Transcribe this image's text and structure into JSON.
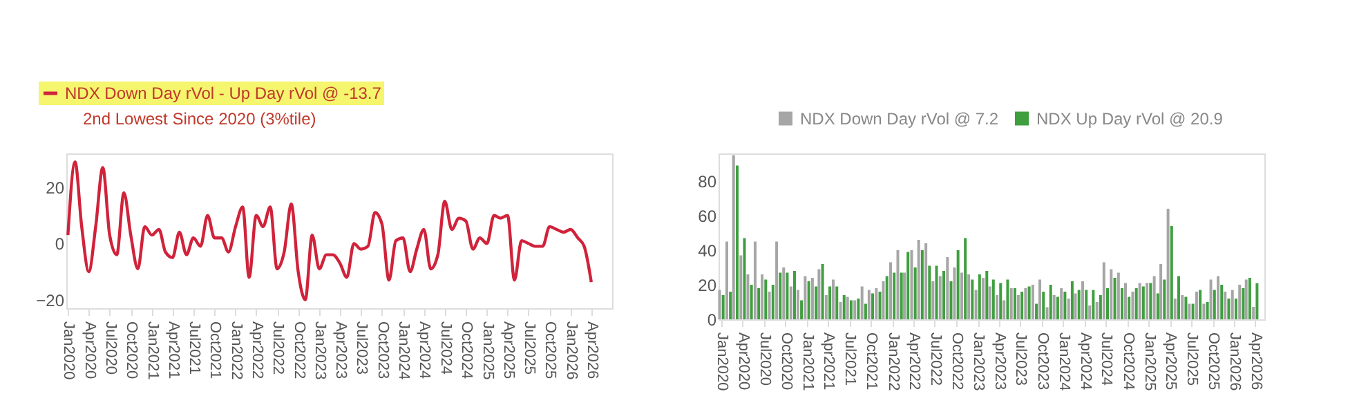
{
  "chart_data": [
    {
      "type": "line",
      "legend": "top left",
      "grid": false,
      "marker": "none",
      "line_style": "solid",
      "annotations": [
        "2nd Lowest Since 2020 (3%tile)"
      ],
      "x": [
        "2020-01",
        "2020-02",
        "2020-03",
        "2020-04",
        "2020-05",
        "2020-06",
        "2020-07",
        "2020-08",
        "2020-09",
        "2020-10",
        "2020-11",
        "2020-12",
        "2021-01",
        "2021-02",
        "2021-03",
        "2021-04",
        "2021-05",
        "2021-06",
        "2021-07",
        "2021-08",
        "2021-09",
        "2021-10",
        "2021-11",
        "2021-12",
        "2022-01",
        "2022-02",
        "2022-03",
        "2022-04",
        "2022-05",
        "2022-06",
        "2022-07",
        "2022-08",
        "2022-09",
        "2022-10",
        "2022-11",
        "2022-12",
        "2023-01",
        "2023-02",
        "2023-03",
        "2023-04",
        "2023-05",
        "2023-06",
        "2023-07",
        "2023-08",
        "2023-09",
        "2023-10",
        "2023-11",
        "2023-12",
        "2024-01",
        "2024-02",
        "2024-03",
        "2024-04",
        "2024-05",
        "2024-06",
        "2024-07",
        "2024-08",
        "2024-09",
        "2024-10",
        "2024-11",
        "2024-12",
        "2025-01",
        "2025-02",
        "2025-03",
        "2025-04",
        "2025-05",
        "2025-06",
        "2025-07",
        "2025-08",
        "2025-09",
        "2025-10",
        "2025-11",
        "2025-12",
        "2026-01",
        "2026-02",
        "2026-03",
        "2026-04"
      ],
      "series": [
        {
          "name": "NDX Down Day rVol - Up Day rVol @ -13.7",
          "color": "#d0233b",
          "values": [
            3,
            29,
            6,
            -10,
            6,
            27,
            3,
            -4,
            18,
            3,
            -9,
            6,
            3,
            5,
            -3,
            -5,
            4,
            -4,
            2,
            -1,
            10,
            2,
            2,
            -3,
            6,
            13,
            -12,
            10,
            6,
            13,
            -9,
            -3,
            14,
            -10,
            -20,
            3,
            -9,
            -4,
            -4,
            -7,
            -12,
            0,
            -2,
            -1,
            11,
            7,
            -13,
            1,
            2,
            -10,
            -2,
            5,
            -9,
            -4,
            15,
            5,
            9,
            8,
            -2,
            2,
            0,
            10,
            9,
            10,
            -13,
            1,
            0,
            -1,
            -1,
            6,
            5,
            4,
            5,
            2,
            -1,
            -13.7
          ]
        }
      ],
      "xlim": [
        "2019-12-25",
        "2026-07-01"
      ],
      "xticks": [
        {
          "value": "2020-01",
          "label": "Jan2020"
        },
        {
          "value": "2020-04",
          "label": "Apr2020"
        },
        {
          "value": "2020-07",
          "label": "Jul2020"
        },
        {
          "value": "2020-10",
          "label": "Oct2020"
        },
        {
          "value": "2021-01",
          "label": "Jan2021"
        },
        {
          "value": "2021-04",
          "label": "Apr2021"
        },
        {
          "value": "2021-07",
          "label": "Jul2021"
        },
        {
          "value": "2021-10",
          "label": "Oct2021"
        },
        {
          "value": "2022-01",
          "label": "Jan2022"
        },
        {
          "value": "2022-04",
          "label": "Apr2022"
        },
        {
          "value": "2022-07",
          "label": "Jul2022"
        },
        {
          "value": "2022-10",
          "label": "Oct2022"
        },
        {
          "value": "2023-01",
          "label": "Jan2023"
        },
        {
          "value": "2023-04",
          "label": "Apr2023"
        },
        {
          "value": "2023-07",
          "label": "Jul2023"
        },
        {
          "value": "2023-10",
          "label": "Oct2023"
        },
        {
          "value": "2024-01",
          "label": "Jan2024"
        },
        {
          "value": "2024-04",
          "label": "Apr2024"
        },
        {
          "value": "2024-07",
          "label": "Jul2024"
        },
        {
          "value": "2024-10",
          "label": "Oct2024"
        },
        {
          "value": "2025-01",
          "label": "Jan2025"
        },
        {
          "value": "2025-04",
          "label": "Apr2025"
        },
        {
          "value": "2025-07",
          "label": "Jul2025"
        },
        {
          "value": "2025-10",
          "label": "Oct2025"
        },
        {
          "value": "2026-01",
          "label": "Jan2026"
        },
        {
          "value": "2026-04",
          "label": "Apr2026"
        }
      ],
      "ylim": [
        -23,
        32
      ],
      "yticks": [
        -20,
        0,
        20
      ]
    },
    {
      "type": "bar",
      "legend": "top",
      "grid": false,
      "x": [
        "2020-01",
        "2020-02",
        "2020-03",
        "2020-04",
        "2020-05",
        "2020-06",
        "2020-07",
        "2020-08",
        "2020-09",
        "2020-10",
        "2020-11",
        "2020-12",
        "2021-01",
        "2021-02",
        "2021-03",
        "2021-04",
        "2021-05",
        "2021-06",
        "2021-07",
        "2021-08",
        "2021-09",
        "2021-10",
        "2021-11",
        "2021-12",
        "2022-01",
        "2022-02",
        "2022-03",
        "2022-04",
        "2022-05",
        "2022-06",
        "2022-07",
        "2022-08",
        "2022-09",
        "2022-10",
        "2022-11",
        "2022-12",
        "2023-01",
        "2023-02",
        "2023-03",
        "2023-04",
        "2023-05",
        "2023-06",
        "2023-07",
        "2023-08",
        "2023-09",
        "2023-10",
        "2023-11",
        "2023-12",
        "2024-01",
        "2024-02",
        "2024-03",
        "2024-04",
        "2024-05",
        "2024-06",
        "2024-07",
        "2024-08",
        "2024-09",
        "2024-10",
        "2024-11",
        "2024-12",
        "2025-01",
        "2025-02",
        "2025-03",
        "2025-04",
        "2025-05",
        "2025-06",
        "2025-07",
        "2025-08",
        "2025-09",
        "2025-10",
        "2025-11",
        "2025-12",
        "2026-01",
        "2026-02",
        "2026-03",
        "2026-04"
      ],
      "series": [
        {
          "name": "NDX Down Day rVol @ 7.2",
          "color": "#a6a6a6",
          "values": [
            17,
            45,
            95,
            37,
            26,
            45,
            26,
            16,
            45,
            30,
            19,
            17,
            25,
            24,
            29,
            14,
            23,
            10,
            13,
            11,
            19,
            17,
            18,
            22,
            33,
            40,
            27,
            40,
            46,
            44,
            22,
            25,
            36,
            30,
            27,
            26,
            17,
            24,
            19,
            14,
            11,
            18,
            14,
            18,
            20,
            23,
            7,
            14,
            18,
            12,
            15,
            22,
            8,
            10,
            33,
            29,
            27,
            21,
            16,
            21,
            21,
            25,
            32,
            64,
            12,
            14,
            9,
            16,
            9,
            23,
            25,
            16,
            17,
            20,
            23,
            7.2
          ]
        },
        {
          "name": "NDX Up Day rVol @ 20.9",
          "color": "#3f9f3f",
          "values": [
            14,
            16,
            89,
            47,
            20,
            18,
            23,
            20,
            27,
            27,
            28,
            11,
            22,
            19,
            32,
            19,
            19,
            14,
            11,
            12,
            9,
            15,
            16,
            25,
            27,
            27,
            39,
            30,
            40,
            31,
            31,
            28,
            22,
            40,
            47,
            23,
            26,
            28,
            23,
            21,
            23,
            18,
            16,
            19,
            9,
            16,
            20,
            13,
            16,
            22,
            17,
            17,
            17,
            14,
            18,
            24,
            18,
            13,
            18,
            19,
            21,
            15,
            23,
            54,
            25,
            13,
            9,
            17,
            10,
            17,
            20,
            12,
            12,
            18,
            24,
            20.9
          ]
        }
      ],
      "xlim": [
        "2019-12-20",
        "2026-05-10"
      ],
      "xticks": [
        {
          "value": "2020-01",
          "label": "Jan2020"
        },
        {
          "value": "2020-04",
          "label": "Apr2020"
        },
        {
          "value": "2020-07",
          "label": "Jul2020"
        },
        {
          "value": "2020-10",
          "label": "Oct2020"
        },
        {
          "value": "2021-01",
          "label": "Jan2021"
        },
        {
          "value": "2021-04",
          "label": "Apr2021"
        },
        {
          "value": "2021-07",
          "label": "Jul2021"
        },
        {
          "value": "2021-10",
          "label": "Oct2021"
        },
        {
          "value": "2022-01",
          "label": "Jan2022"
        },
        {
          "value": "2022-04",
          "label": "Apr2022"
        },
        {
          "value": "2022-07",
          "label": "Jul2022"
        },
        {
          "value": "2022-10",
          "label": "Oct2022"
        },
        {
          "value": "2023-01",
          "label": "Jan2023"
        },
        {
          "value": "2023-04",
          "label": "Apr2023"
        },
        {
          "value": "2023-07",
          "label": "Jul2023"
        },
        {
          "value": "2023-10",
          "label": "Oct2023"
        },
        {
          "value": "2024-01",
          "label": "Jan2024"
        },
        {
          "value": "2024-04",
          "label": "Apr2024"
        },
        {
          "value": "2024-07",
          "label": "Jul2024"
        },
        {
          "value": "2024-10",
          "label": "Oct2024"
        },
        {
          "value": "2025-01",
          "label": "Jan2025"
        },
        {
          "value": "2025-04",
          "label": "Apr2025"
        },
        {
          "value": "2025-07",
          "label": "Jul2025"
        },
        {
          "value": "2025-10",
          "label": "Oct2025"
        },
        {
          "value": "2026-01",
          "label": "Jan2026"
        },
        {
          "value": "2026-04",
          "label": "Apr2026"
        }
      ],
      "ylim": [
        0,
        96
      ],
      "yticks": [
        0,
        20,
        40,
        60,
        80
      ]
    }
  ]
}
